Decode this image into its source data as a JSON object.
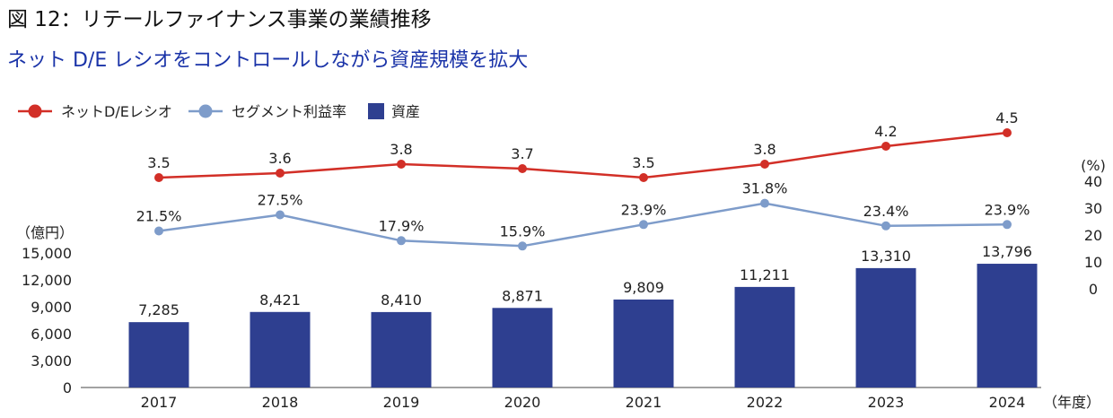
{
  "header": {
    "title": "図 12：リテールファイナンス事業の業績推移",
    "subtitle": "ネット D/E レシオをコントロールしながら資産規模を拡大"
  },
  "colors": {
    "de_ratio": "#d22f27",
    "segment_margin": "#7e9cca",
    "assets": "#2e3f90",
    "title_text": "#111111",
    "subtitle_text": "#1a33a8"
  },
  "chart_data": {
    "type": "bar",
    "categories": [
      "2017",
      "2018",
      "2019",
      "2020",
      "2021",
      "2022",
      "2023",
      "2024"
    ],
    "xlabel": "（年度）",
    "legend": [
      "ネットD/Eレシオ",
      "セグメント利益率",
      "資産"
    ],
    "left_axis": {
      "unit_label": "（億円）",
      "ylim": [
        0,
        15000
      ],
      "ticks": [
        "0",
        "3,000",
        "6,000",
        "9,000",
        "12,000",
        "15,000"
      ]
    },
    "right_axis": {
      "unit_label": "(%)",
      "ylim": [
        0,
        40
      ],
      "ticks": [
        "0",
        "10",
        "20",
        "30",
        "40"
      ]
    },
    "series": [
      {
        "name": "資産",
        "kind": "bar",
        "values": [
          7285,
          8421,
          8410,
          8871,
          9809,
          11211,
          13310,
          13796
        ],
        "labels": [
          "7,285",
          "8,421",
          "8,410",
          "8,871",
          "9,809",
          "11,211",
          "13,310",
          "13,796"
        ]
      },
      {
        "name": "セグメント利益率",
        "kind": "line",
        "axis": "right",
        "values": [
          21.5,
          27.5,
          17.9,
          15.9,
          23.9,
          31.8,
          23.4,
          23.9
        ],
        "labels": [
          "21.5%",
          "27.5%",
          "17.9%",
          "15.9%",
          "23.9%",
          "31.8%",
          "23.4%",
          "23.9%"
        ]
      },
      {
        "name": "ネットD/Eレシオ",
        "kind": "line",
        "axis": "separate",
        "values": [
          3.5,
          3.6,
          3.8,
          3.7,
          3.5,
          3.8,
          4.2,
          4.5
        ],
        "labels": [
          "3.5",
          "3.6",
          "3.8",
          "3.7",
          "3.5",
          "3.8",
          "4.2",
          "4.5"
        ]
      }
    ]
  }
}
